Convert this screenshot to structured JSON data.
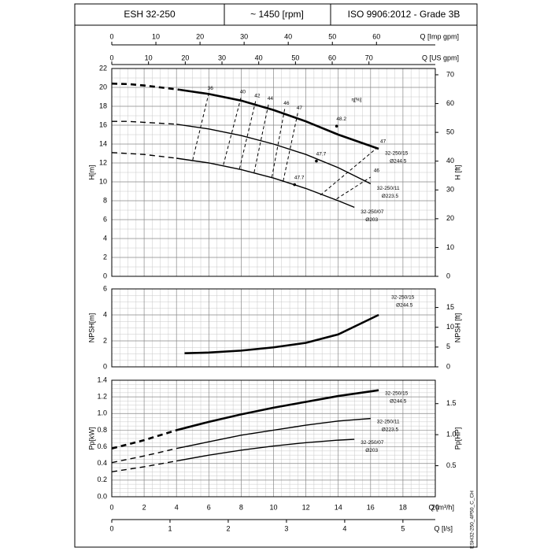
{
  "header": {
    "model": "ESH 32-250",
    "speed": "~ 1450 [rpm]",
    "standard": "ISO 9906:2012 - Grade 3B"
  },
  "code": "ESH32-250_4P50_C_CH",
  "chart_data": [
    {
      "type": "line",
      "ylabel": "H[m]",
      "y2label": "H [ft]",
      "eta_label": "η[%]",
      "xlim": [
        0,
        20
      ],
      "xticks": [
        0,
        2,
        4,
        6,
        8,
        10,
        12,
        14,
        16,
        18,
        20
      ],
      "ylim": [
        0,
        22
      ],
      "yticks": [
        0,
        2,
        4,
        6,
        8,
        10,
        12,
        14,
        16,
        18,
        20,
        22
      ],
      "y2lim": [
        0,
        72.18
      ],
      "y2ticks": [
        0,
        10,
        20,
        30,
        40,
        50,
        60,
        70
      ],
      "top_axes": [
        {
          "label": "Q [Imp gpm]",
          "xlim": [
            0,
            73.33
          ],
          "xticks": [
            0,
            10,
            20,
            30,
            40,
            50,
            60
          ]
        },
        {
          "label": "Q [US gpm]",
          "xlim": [
            0,
            88.06
          ],
          "xticks": [
            0,
            10,
            20,
            30,
            40,
            50,
            60,
            70
          ]
        }
      ],
      "series": [
        {
          "name": "32-250/15",
          "diameter": "Ø244.5",
          "color": "#000000",
          "dashed": {
            "x": [
              0,
              1,
              2,
              3,
              4.2
            ],
            "values": [
              20.4,
              20.35,
              20.2,
              20.0,
              19.75
            ]
          },
          "solid": {
            "x": [
              4.2,
              6,
              8,
              10,
              12,
              14,
              16.5
            ],
            "values": [
              19.75,
              19.3,
              18.6,
              17.6,
              16.4,
              15.0,
              13.5
            ]
          }
        },
        {
          "name": "32-250/11",
          "diameter": "Ø223.5",
          "color": "#000000",
          "dashed": {
            "x": [
              0,
              1,
              2,
              3,
              4
            ],
            "values": [
              16.4,
              16.4,
              16.3,
              16.2,
              16.1
            ]
          },
          "solid": {
            "x": [
              4,
              6,
              8,
              10,
              12,
              14,
              16
            ],
            "values": [
              16.1,
              15.6,
              14.9,
              14.0,
              12.9,
              11.5,
              9.8
            ]
          }
        },
        {
          "name": "32-250/07",
          "diameter": "Ø203",
          "color": "#000000",
          "dashed": {
            "x": [
              0,
              1,
              2,
              3,
              4
            ],
            "values": [
              13.1,
              13.0,
              12.9,
              12.7,
              12.5
            ]
          },
          "solid": {
            "x": [
              4,
              6,
              8,
              10,
              12,
              14,
              15
            ],
            "values": [
              12.5,
              12.0,
              11.3,
              10.4,
              9.3,
              8.0,
              7.3
            ]
          }
        }
      ],
      "efficiency_lines": [
        {
          "eta": 36,
          "x": [
            5.0,
            6.0
          ],
          "values": [
            12.3,
            19.4
          ]
        },
        {
          "eta": 40,
          "x": [
            6.9,
            8.0
          ],
          "values": [
            11.8,
            19.0
          ]
        },
        {
          "eta": 42,
          "x": [
            7.9,
            8.9
          ],
          "values": [
            11.4,
            18.6
          ]
        },
        {
          "eta": 44,
          "x": [
            8.8,
            9.7
          ],
          "values": [
            11.0,
            18.3
          ]
        },
        {
          "eta": 46,
          "x": [
            9.9,
            10.7
          ],
          "values": [
            10.5,
            17.8
          ]
        },
        {
          "eta": 47,
          "x": [
            10.6,
            11.5
          ],
          "values": [
            10.1,
            17.3
          ]
        },
        {
          "eta": 46,
          "x": [
            13.9,
            16.0
          ],
          "values": [
            8.2,
            10.5
          ]
        },
        {
          "eta": 47,
          "x": [
            12.9,
            16.4
          ],
          "values": [
            8.6,
            13.6
          ]
        }
      ],
      "bep": {
        "x": [
          11.3,
          12.65,
          13.9
        ],
        "values": [
          9.7,
          12.2,
          15.9
        ],
        "labels": [
          47.7,
          47.7,
          48.2
        ]
      }
    },
    {
      "type": "line",
      "ylabel": "NPSH[m]",
      "y2label": "NPSH [ft]",
      "xlim": [
        0,
        20
      ],
      "xticks": [
        0,
        2,
        4,
        6,
        8,
        10,
        12,
        14,
        16,
        18,
        20
      ],
      "ylim": [
        0,
        6
      ],
      "yticks": [
        0,
        2,
        4,
        6
      ],
      "y2lim": [
        0,
        19.69
      ],
      "y2ticks": [
        0,
        5,
        10,
        15
      ],
      "series": [
        {
          "name": "32-250/15",
          "diameter": "Ø244.5",
          "color": "#000000",
          "solid": {
            "x": [
              4.5,
              6,
              8,
              10,
              12,
              14,
              16.5
            ],
            "values": [
              1.05,
              1.1,
              1.25,
              1.5,
              1.85,
              2.5,
              4.0
            ]
          }
        }
      ]
    },
    {
      "type": "line",
      "ylabel": "Pp[kW]",
      "y2label": "Pp[HP]",
      "xlabel": "Q [m³/h]",
      "xlim": [
        0,
        20
      ],
      "xticks": [
        0,
        2,
        4,
        6,
        8,
        10,
        12,
        14,
        16,
        18,
        20
      ],
      "ylim": [
        0,
        1.4
      ],
      "yticks": [
        {
          "value": 0,
          "label": "0.0"
        },
        0.2,
        0.4,
        0.6,
        0.8,
        {
          "value": 1,
          "label": "1.0"
        },
        1.2,
        1.4
      ],
      "y2lim": [
        0,
        1.877
      ],
      "y2ticks": [
        0.5,
        {
          "value": 1,
          "label": "1.0"
        },
        1.5
      ],
      "bottom_axis": {
        "label": "Q [l/s]",
        "xlim": [
          0,
          5.556
        ],
        "xticks": [
          0,
          1,
          2,
          3,
          4,
          5
        ]
      },
      "series": [
        {
          "name": "32-250/15",
          "diameter": "Ø244.5",
          "color": "#000000",
          "dashed": {
            "x": [
              0,
              2,
              4
            ],
            "values": [
              0.58,
              0.68,
              0.8
            ]
          },
          "solid": {
            "x": [
              4,
              6,
              8,
              10,
              12,
              14,
              16.5
            ],
            "values": [
              0.8,
              0.9,
              0.99,
              1.07,
              1.14,
              1.21,
              1.28
            ]
          }
        },
        {
          "name": "32-250/11",
          "diameter": "Ø223.5",
          "color": "#000000",
          "dashed": {
            "x": [
              0,
              2,
              4
            ],
            "values": [
              0.41,
              0.49,
              0.58
            ]
          },
          "solid": {
            "x": [
              4,
              6,
              8,
              10,
              12,
              14,
              16
            ],
            "values": [
              0.58,
              0.66,
              0.74,
              0.8,
              0.86,
              0.91,
              0.94
            ]
          }
        },
        {
          "name": "32-250/07",
          "diameter": "Ø203",
          "color": "#000000",
          "dashed": {
            "x": [
              0,
              2,
              4
            ],
            "values": [
              0.3,
              0.36,
              0.43
            ]
          },
          "solid": {
            "x": [
              4,
              6,
              8,
              10,
              12,
              14,
              15
            ],
            "values": [
              0.43,
              0.5,
              0.56,
              0.61,
              0.65,
              0.68,
              0.69
            ]
          }
        }
      ]
    }
  ]
}
